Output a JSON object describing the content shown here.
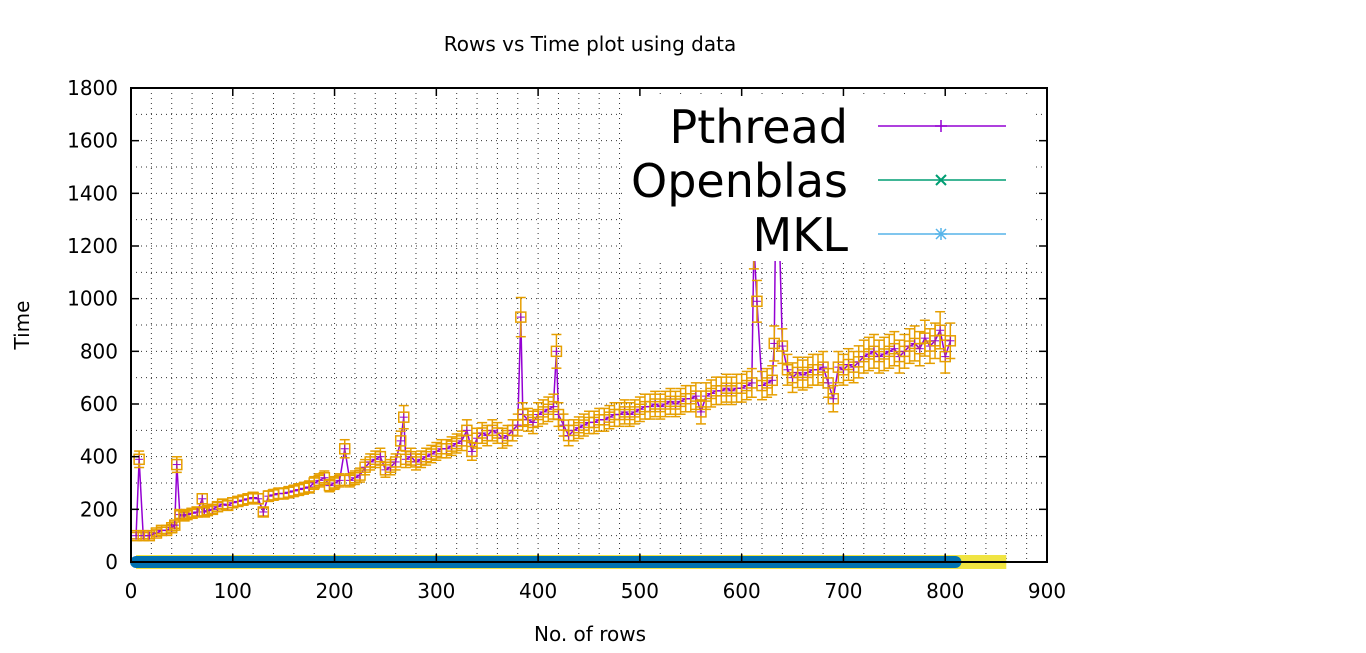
{
  "chart_data": {
    "type": "line",
    "title": "Rows vs Time plot using data",
    "xlabel": "No. of rows",
    "ylabel": "Time",
    "xlim": [
      0,
      900
    ],
    "ylim": [
      0,
      1800
    ],
    "xticks": [
      0,
      100,
      200,
      300,
      400,
      500,
      600,
      700,
      800,
      900
    ],
    "yticks": [
      0,
      200,
      400,
      600,
      800,
      1000,
      1200,
      1400,
      1600,
      1800
    ],
    "grid": true,
    "legend_position": "top-right",
    "colors": {
      "pthread": "#9400d3",
      "openblas": "#009e73",
      "mkl": "#56b4e9",
      "errorbars": "#e69f00",
      "baseline_blue": "#0072b2",
      "baseline_yellow": "#f0e442"
    },
    "series": [
      {
        "name": "Pthread",
        "marker": "plus",
        "x": [
          5,
          8,
          12,
          18,
          25,
          30,
          35,
          40,
          43,
          45,
          48,
          52,
          55,
          60,
          65,
          70,
          72,
          75,
          80,
          85,
          90,
          95,
          100,
          105,
          110,
          115,
          120,
          125,
          130,
          135,
          140,
          145,
          150,
          155,
          160,
          165,
          170,
          175,
          180,
          185,
          190,
          195,
          200,
          205,
          210,
          215,
          220,
          225,
          230,
          235,
          240,
          245,
          250,
          255,
          260,
          265,
          268,
          270,
          275,
          280,
          285,
          290,
          295,
          300,
          305,
          310,
          315,
          320,
          325,
          330,
          335,
          340,
          345,
          350,
          355,
          360,
          365,
          370,
          375,
          380,
          383,
          385,
          390,
          395,
          400,
          405,
          410,
          415,
          418,
          420,
          425,
          430,
          435,
          440,
          445,
          450,
          455,
          460,
          465,
          470,
          475,
          480,
          485,
          490,
          495,
          500,
          505,
          510,
          515,
          520,
          525,
          530,
          535,
          540,
          545,
          550,
          555,
          560,
          565,
          570,
          575,
          580,
          585,
          590,
          595,
          600,
          605,
          610,
          612,
          615,
          620,
          625,
          630,
          632,
          634,
          636,
          640,
          645,
          650,
          655,
          660,
          665,
          670,
          675,
          680,
          685,
          690,
          695,
          700,
          705,
          710,
          715,
          720,
          725,
          730,
          735,
          740,
          745,
          750,
          755,
          760,
          765,
          770,
          775,
          780,
          785,
          790,
          795,
          800,
          805
        ],
        "y": [
          100,
          390,
          100,
          100,
          110,
          120,
          120,
          130,
          140,
          370,
          180,
          175,
          180,
          185,
          190,
          240,
          190,
          195,
          200,
          210,
          220,
          215,
          225,
          230,
          235,
          240,
          245,
          240,
          190,
          250,
          255,
          260,
          260,
          265,
          270,
          275,
          280,
          285,
          300,
          310,
          320,
          290,
          300,
          310,
          430,
          310,
          320,
          330,
          360,
          380,
          390,
          400,
          350,
          360,
          380,
          460,
          550,
          390,
          400,
          380,
          390,
          400,
          410,
          420,
          430,
          430,
          440,
          450,
          460,
          500,
          420,
          470,
          490,
          480,
          500,
          490,
          470,
          480,
          500,
          520,
          930,
          560,
          540,
          530,
          560,
          570,
          580,
          590,
          800,
          560,
          520,
          480,
          500,
          510,
          520,
          530,
          530,
          540,
          540,
          550,
          560,
          560,
          570,
          560,
          570,
          580,
          590,
          590,
          600,
          590,
          600,
          610,
          600,
          610,
          620,
          620,
          630,
          570,
          630,
          640,
          650,
          650,
          660,
          650,
          660,
          660,
          670,
          680,
          1210,
          990,
          670,
          680,
          690,
          830,
          1530,
          1390,
          820,
          730,
          700,
          720,
          710,
          720,
          730,
          730,
          740,
          680,
          620,
          740,
          730,
          750,
          740,
          760,
          780,
          790,
          800,
          780,
          790,
          800,
          810,
          780,
          800,
          820,
          830,
          810,
          850,
          820,
          840,
          880,
          780,
          840
        ]
      },
      {
        "name": "Openblas",
        "marker": "cross",
        "x": [
          5,
          100,
          200,
          300,
          400,
          500,
          600,
          700,
          800,
          810
        ],
        "y": [
          0,
          0,
          0,
          0,
          0,
          0,
          0,
          0,
          0,
          0
        ]
      },
      {
        "name": "MKL",
        "marker": "star",
        "x": [
          5,
          100,
          200,
          300,
          400,
          500,
          600,
          700,
          800,
          860
        ],
        "y": [
          0,
          0,
          0,
          0,
          0,
          0,
          0,
          0,
          0,
          0
        ]
      }
    ]
  }
}
